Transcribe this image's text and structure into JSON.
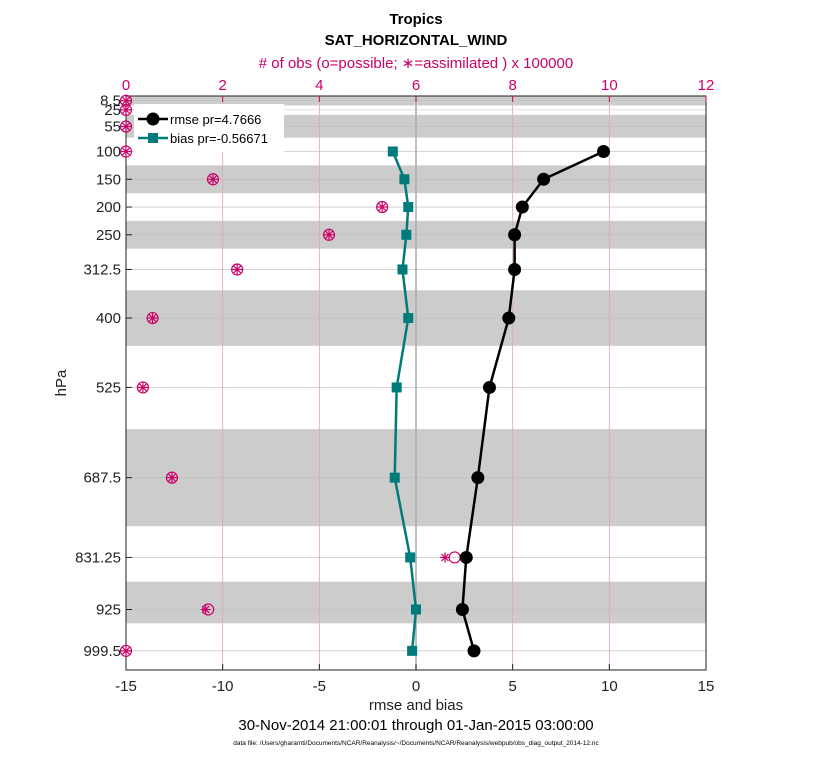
{
  "chart_data": {
    "type": "line",
    "title": "Tropics",
    "subtitle": "SAT_HORIZONTAL_WIND",
    "top_axis_label": "# of obs (o=possible; ∗=assimilated ) x 100000",
    "xlabel": "rmse and bias",
    "ylabel": "hPa",
    "date_range": "30-Nov-2014 21:00:01 through 01-Jan-2015 03:00:00",
    "data_file": "data file: /Users/gharamti/Documents/NCAR/Reanalysis/~/Documents/NCAR/Reanalysis/webpub/obs_diag_output_2014-12.nc",
    "xlim": [
      -15,
      15
    ],
    "x_ticks": [
      "-15",
      "-10",
      "-5",
      "0",
      "5",
      "10",
      "15"
    ],
    "top_xlim": [
      0,
      12
    ],
    "top_ticks": [
      "0",
      "2",
      "4",
      "6",
      "8",
      "10",
      "12"
    ],
    "ylim_hpa": [
      1034,
      0
    ],
    "y_ticks": [
      "8.5",
      "25",
      "55",
      "100",
      "150",
      "200",
      "250",
      "312.5",
      "400",
      "525",
      "687.5",
      "831.25",
      "925",
      "999.5"
    ],
    "levels": [
      8.5,
      25,
      55,
      100,
      150,
      200,
      250,
      312.5,
      400,
      525,
      687.5,
      831.25,
      925,
      999.5
    ],
    "shaded_bands": [
      [
        0,
        17
      ],
      [
        34,
        75
      ],
      [
        125,
        175
      ],
      [
        225,
        275
      ],
      [
        350,
        450
      ],
      [
        600,
        775
      ],
      [
        875,
        950
      ]
    ],
    "legend": {
      "position": "top-left",
      "entries": [
        "rmse pr=4.7666",
        "bias pr=-0.56671"
      ]
    },
    "series": [
      {
        "name": "rmse pr=4.7666",
        "color": "#000000",
        "marker": "circle",
        "values": [
          null,
          null,
          null,
          9.7,
          6.6,
          5.5,
          5.1,
          5.1,
          4.8,
          3.8,
          3.2,
          2.6,
          2.4,
          3.0
        ]
      },
      {
        "name": "bias pr=-0.56671",
        "color": "#007b7b",
        "marker": "square",
        "values": [
          null,
          null,
          null,
          -1.2,
          -0.6,
          -0.4,
          -0.5,
          -0.7,
          -0.4,
          -1.0,
          -1.1,
          -0.3,
          0.0,
          -0.2
        ]
      }
    ],
    "obs_possible": [
      0.0,
      0.0,
      0.0,
      0.0,
      1.8,
      5.3,
      4.2,
      2.3,
      0.55,
      0.35,
      0.95,
      6.8,
      1.7,
      0.0
    ],
    "obs_assimilated": [
      0.0,
      0.0,
      0.0,
      0.0,
      1.8,
      5.3,
      4.2,
      2.3,
      0.55,
      0.35,
      0.95,
      6.6,
      1.65,
      0.0
    ],
    "colors": {
      "obs": "#cc0066",
      "rmse": "#000000",
      "bias": "#007b7b",
      "band": "#cccccc",
      "grid": "#dddddd",
      "vgrid": "#d9a8b8"
    }
  }
}
